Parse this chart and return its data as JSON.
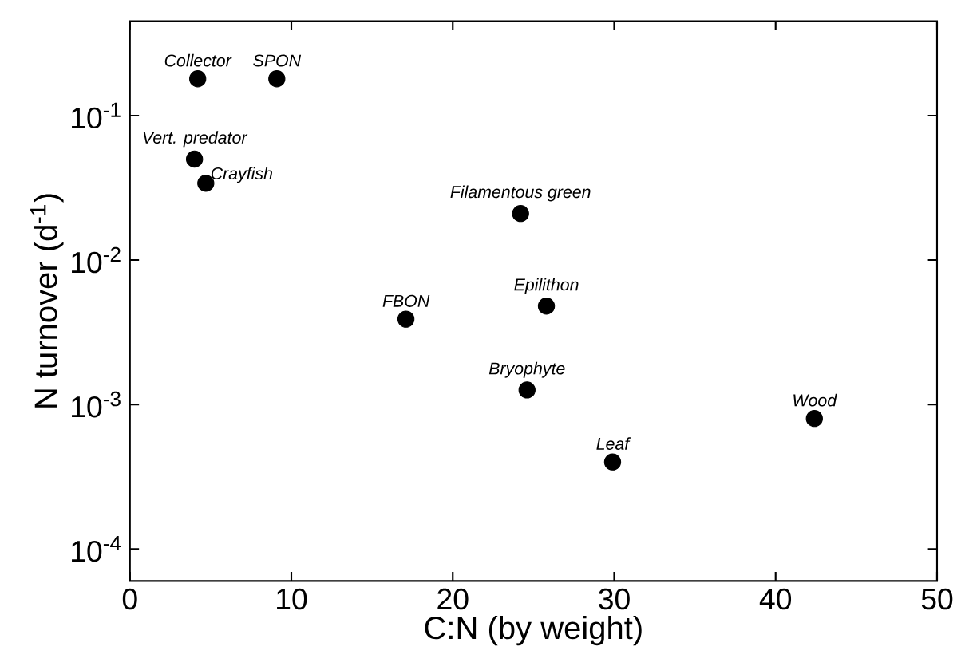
{
  "chart_data": {
    "type": "scatter",
    "xlabel": "C:N (by weight)",
    "ylabel": "N turnover (d$^{-1}$)",
    "log": "y",
    "marker": "circle",
    "xlim": [
      0,
      50
    ],
    "xticks": [
      0,
      10,
      20,
      30,
      40,
      50
    ],
    "ylim": [
      6e-05,
      0.45
    ],
    "yticks": [
      {
        "value": 0.1,
        "label": "10$^{-1}$"
      },
      {
        "value": 0.01,
        "label": "10$^{-2}$"
      },
      {
        "value": 0.001,
        "label": "10$^{-3}$"
      },
      {
        "value": 0.0001,
        "label": "10$^{-4}$"
      }
    ],
    "x": [
      4.2,
      9.1,
      4.0,
      4.7,
      24.2,
      17.1,
      25.8,
      24.6,
      29.9,
      42.4
    ],
    "series": [
      {
        "color": "#000000",
        "values": [
          0.18,
          0.18,
          0.05,
          0.034,
          0.021,
          0.0039,
          0.0048,
          0.00126,
          0.0004,
          0.0008
        ]
      }
    ],
    "annotations": [
      {
        "text": "Collector",
        "x": 4.2,
        "y": 0.18
      },
      {
        "text": "SPON",
        "x": 9.1,
        "y": 0.18
      },
      {
        "text": "Vert. predator",
        "x": 4.0,
        "y": 0.05
      },
      {
        "text": "Crayfish",
        "x": 4.7,
        "y": 0.034
      },
      {
        "text": "Filamentous green",
        "x": 24.2,
        "y": 0.021
      },
      {
        "text": "FBON",
        "x": 17.1,
        "y": 0.0039
      },
      {
        "text": "Epilithon",
        "x": 25.8,
        "y": 0.0048
      },
      {
        "text": "Bryophyte",
        "x": 24.6,
        "y": 0.00126
      },
      {
        "text": "Leaf",
        "x": 29.9,
        "y": 0.0004
      },
      {
        "text": "Wood",
        "x": 42.4,
        "y": 0.0008
      }
    ]
  }
}
